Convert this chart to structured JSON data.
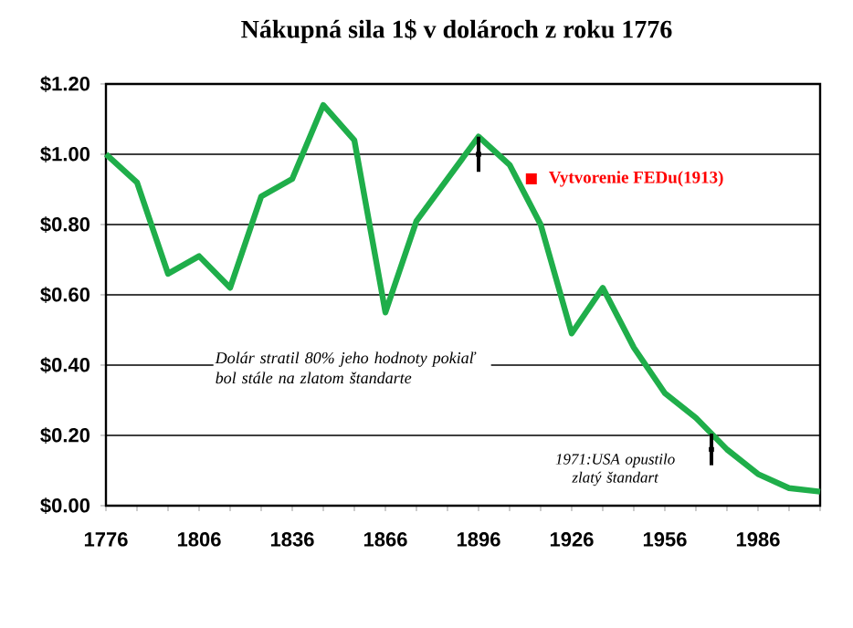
{
  "chart_data": {
    "type": "line",
    "title": "Nákupná sila 1$ v dolároch z roku 1776",
    "x": [
      1776,
      1786,
      1796,
      1806,
      1816,
      1826,
      1836,
      1846,
      1856,
      1866,
      1876,
      1886,
      1896,
      1906,
      1916,
      1926,
      1936,
      1946,
      1956,
      1966,
      1976,
      1986,
      1996,
      2006
    ],
    "series": [
      {
        "color": "#1fae4a",
        "values": [
          1.0,
          0.92,
          0.66,
          0.71,
          0.62,
          0.88,
          0.93,
          1.14,
          1.04,
          0.55,
          0.81,
          0.93,
          1.05,
          0.97,
          0.8,
          0.49,
          0.62,
          0.45,
          0.32,
          0.25,
          0.16,
          0.09,
          0.05,
          0.04
        ]
      },
      {
        "type": "scatter",
        "color": "#000000",
        "x": [
          1896,
          1971
        ],
        "values": [
          1.0,
          0.16
        ],
        "errors": [
          0.05,
          0.045
        ]
      }
    ],
    "xlim": [
      1776,
      2006
    ],
    "xticks": [
      1776,
      {
        "value": 1786,
        "label": null
      },
      {
        "value": 1796,
        "label": null
      },
      1806,
      {
        "value": 1816,
        "label": null
      },
      {
        "value": 1826,
        "label": null
      },
      1836,
      {
        "value": 1846,
        "label": null
      },
      {
        "value": 1856,
        "label": null
      },
      1866,
      {
        "value": 1876,
        "label": null
      },
      {
        "value": 1886,
        "label": null
      },
      1896,
      {
        "value": 1906,
        "label": null
      },
      {
        "value": 1916,
        "label": null
      },
      1926,
      {
        "value": 1936,
        "label": null
      },
      {
        "value": 1946,
        "label": null
      },
      1956,
      {
        "value": 1966,
        "label": null
      },
      {
        "value": 1976,
        "label": null
      },
      1986,
      {
        "value": 1996,
        "label": null
      },
      {
        "value": 2006,
        "label": null
      }
    ],
    "ylim": [
      0,
      1.2
    ],
    "yticks": [
      {
        "value": 0,
        "label": "$0.00"
      },
      {
        "value": 0.2,
        "label": "$0.20"
      },
      {
        "value": 0.4,
        "label": "$0.40"
      },
      {
        "value": 0.6,
        "label": "$0.60"
      },
      {
        "value": 0.8,
        "label": "$0.80"
      },
      {
        "value": 1.0,
        "label": "$1.00"
      },
      {
        "value": 1.2,
        "label": "$1.20"
      }
    ],
    "grid": "y",
    "line_style": "solid",
    "annotations": [
      {
        "text": "Vytvorenie FEDu(1913)",
        "x": 1913,
        "y": 0.93
      },
      {
        "text": "1971:USA opustilo zlatý štandart",
        "x": 1971,
        "y": 0.16
      },
      "Dolár stratil 80% jeho hodnoty pokiaľ bol stále na zlatom štandarte"
    ]
  }
}
